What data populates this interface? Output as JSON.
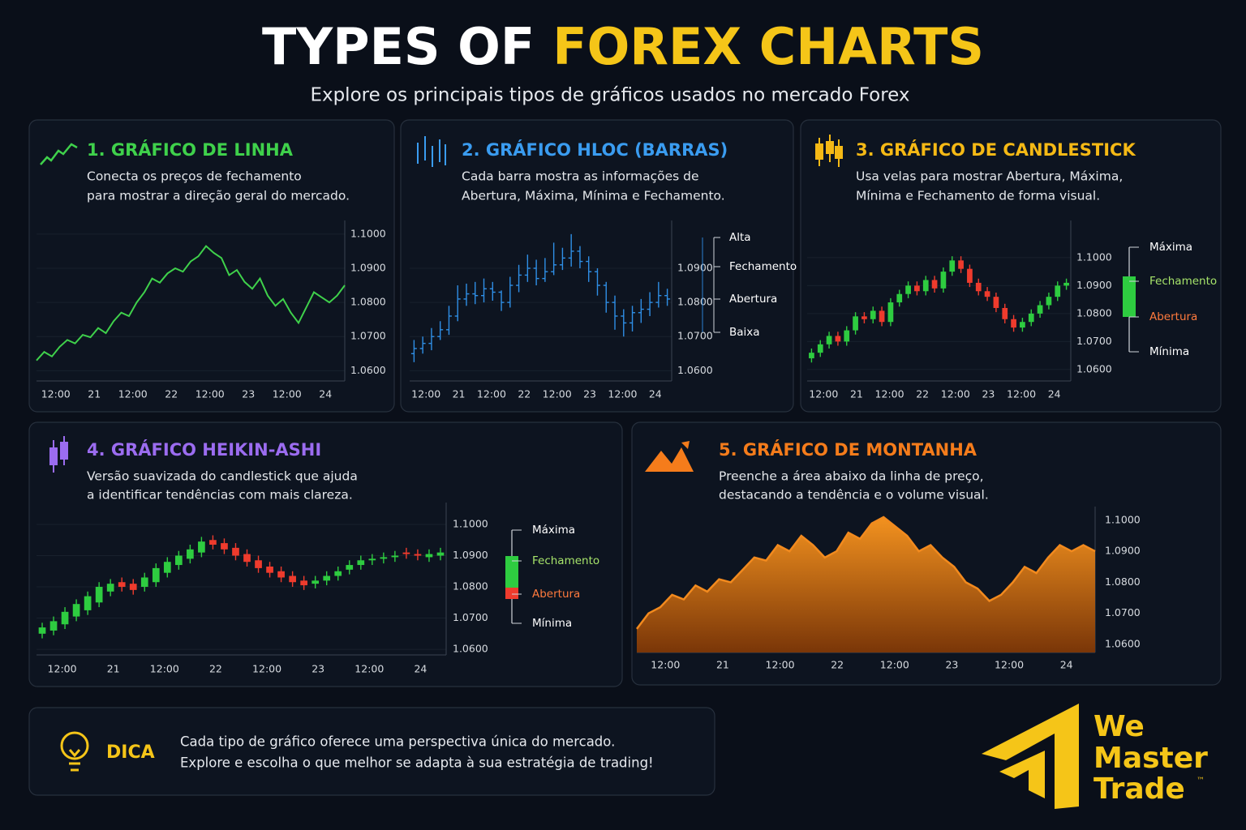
{
  "header": {
    "title_part1": "TYPES OF",
    "title_part2": "FOREX CHARTS",
    "subtitle": "Explore os principais tipos de gráficos usados no mercado Forex"
  },
  "chart_data": [
    {
      "type": "line",
      "title": "1. GRÁFICO DE LINHA",
      "title_color": "#3fd14b",
      "description": [
        "Conecta os preços de fechamento",
        "para mostrar a direção geral do mercado."
      ],
      "color": "#3fd14b",
      "grid": true,
      "values": [
        1.063,
        1.0655,
        1.0642,
        1.067,
        1.069,
        1.068,
        1.0705,
        1.0698,
        1.0725,
        1.071,
        1.0745,
        1.077,
        1.076,
        1.08,
        1.083,
        1.087,
        1.0858,
        1.0885,
        1.09,
        1.089,
        1.092,
        1.0935,
        1.0965,
        1.0945,
        1.093,
        1.088,
        1.0895,
        1.086,
        1.084,
        1.087,
        1.082,
        1.079,
        1.081,
        1.077,
        1.074,
        1.0785,
        1.083,
        1.0815,
        1.08,
        1.082,
        1.085
      ],
      "ylim": [
        1.057,
        1.104
      ],
      "yticks": [
        {
          "value": 1.06,
          "label": "1.0600"
        },
        {
          "value": 1.07,
          "label": "1.0700"
        },
        {
          "value": 1.08,
          "label": "1.0800"
        },
        {
          "value": 1.09,
          "label": "1.0900"
        },
        {
          "value": 1.1,
          "label": "1.1000"
        }
      ],
      "xticks": [
        "12:00",
        "21",
        "12:00",
        "22",
        "12:00",
        "23",
        "12:00",
        "24"
      ]
    },
    {
      "type": "ohlc",
      "title": "2. GRÁFICO HLOC (BARRAS)",
      "title_color": "#3a9cf0",
      "description": [
        "Cada barra mostra as informações de",
        "Abertura, Máxima, Mínima e Fechamento."
      ],
      "color": "#2f8fe6",
      "grid": true,
      "open": [
        1.065,
        1.0665,
        1.068,
        1.07,
        1.072,
        1.076,
        1.081,
        1.0825,
        1.082,
        1.084,
        1.083,
        1.08,
        1.085,
        1.088,
        1.09,
        1.087,
        1.089,
        1.091,
        1.093,
        1.095,
        1.092,
        1.089,
        1.085,
        1.08,
        1.076,
        1.074,
        1.077,
        1.078,
        1.08,
        1.082
      ],
      "high": [
        1.069,
        1.07,
        1.0725,
        1.0745,
        1.079,
        1.085,
        1.0855,
        1.086,
        1.087,
        1.086,
        1.0835,
        1.0875,
        1.091,
        1.094,
        1.0925,
        1.093,
        1.0975,
        1.096,
        1.1,
        1.0965,
        1.0935,
        1.09,
        1.086,
        1.082,
        1.078,
        1.079,
        1.081,
        1.083,
        1.086,
        1.084
      ],
      "low": [
        1.0625,
        1.065,
        1.066,
        1.069,
        1.0705,
        1.0745,
        1.079,
        1.0795,
        1.08,
        1.0805,
        1.0775,
        1.0785,
        1.083,
        1.086,
        1.085,
        1.086,
        1.088,
        1.0895,
        1.0905,
        1.09,
        1.086,
        1.082,
        1.077,
        1.072,
        1.07,
        1.0715,
        1.074,
        1.076,
        1.0785,
        1.079
      ],
      "close": [
        1.0665,
        1.068,
        1.07,
        1.072,
        1.076,
        1.081,
        1.0825,
        1.082,
        1.084,
        1.083,
        1.08,
        1.085,
        1.088,
        1.09,
        1.087,
        1.089,
        1.091,
        1.093,
        1.095,
        1.092,
        1.089,
        1.085,
        1.08,
        1.076,
        1.074,
        1.077,
        1.078,
        1.08,
        1.082,
        1.081
      ],
      "ylim": [
        1.057,
        1.104
      ],
      "yticks": [
        {
          "value": 1.06,
          "label": "1.0600"
        },
        {
          "value": 1.07,
          "label": "1.0700"
        },
        {
          "value": 1.08,
          "label": "1.0800"
        },
        {
          "value": 1.09,
          "label": "1.0900"
        }
      ],
      "xticks": [
        "12:00",
        "21",
        "12:00",
        "22",
        "12:00",
        "23",
        "12:00",
        "24"
      ],
      "legend_labels": [
        "Alta",
        "Fechamento",
        "Abertura",
        "Baixa"
      ]
    },
    {
      "type": "candlestick",
      "title": "3. GRÁFICO DE CANDLESTICK",
      "title_color": "#f5b915",
      "description": [
        "Usa velas para mostrar Abertura, Máxima,",
        "Mínima e Fechamento de forma visual."
      ],
      "up_color": "#2ecc40",
      "down_color": "#ef3b2d",
      "grid": true,
      "open": [
        1.064,
        1.066,
        1.069,
        1.072,
        1.07,
        1.074,
        1.079,
        1.078,
        1.081,
        1.077,
        1.084,
        1.087,
        1.09,
        1.088,
        1.092,
        1.089,
        1.095,
        1.099,
        1.096,
        1.091,
        1.088,
        1.086,
        1.082,
        1.078,
        1.075,
        1.077,
        1.08,
        1.083,
        1.086,
        1.09
      ],
      "high": [
        1.0675,
        1.0705,
        1.0735,
        1.0735,
        1.0755,
        1.0805,
        1.0805,
        1.0825,
        1.0825,
        1.0855,
        1.0885,
        1.0915,
        1.0915,
        1.0935,
        1.0935,
        1.0965,
        1.1005,
        1.1005,
        1.0975,
        1.0925,
        1.0895,
        1.0875,
        1.0835,
        1.0795,
        1.0785,
        1.0815,
        1.0845,
        1.0875,
        1.0915,
        1.0925
      ],
      "low": [
        1.0625,
        1.0645,
        1.0675,
        1.0685,
        1.0685,
        1.0725,
        1.0765,
        1.0765,
        1.0755,
        1.0755,
        1.0825,
        1.0855,
        1.0865,
        1.0865,
        1.0875,
        1.0875,
        1.0935,
        1.0945,
        1.0895,
        1.0865,
        1.0845,
        1.0805,
        1.0765,
        1.0735,
        1.0735,
        1.0755,
        1.0785,
        1.0815,
        1.0845,
        1.0885
      ],
      "close": [
        1.066,
        1.069,
        1.072,
        1.07,
        1.074,
        1.079,
        1.078,
        1.081,
        1.077,
        1.084,
        1.087,
        1.09,
        1.088,
        1.092,
        1.089,
        1.095,
        1.099,
        1.096,
        1.091,
        1.088,
        1.086,
        1.082,
        1.078,
        1.075,
        1.077,
        1.08,
        1.083,
        1.086,
        1.09,
        1.091
      ],
      "ylim": [
        1.0559,
        1.1133
      ],
      "yticks": [
        {
          "value": 1.06,
          "label": "1.0600"
        },
        {
          "value": 1.07,
          "label": "1.0700"
        },
        {
          "value": 1.08,
          "label": "1.0800"
        },
        {
          "value": 1.09,
          "label": "1.0900"
        },
        {
          "value": 1.1,
          "label": "1.1000"
        }
      ],
      "xticks": [
        "12:00",
        "21",
        "12:00",
        "22",
        "12:00",
        "23",
        "12:00",
        "24"
      ],
      "legend_labels": [
        "Máxima",
        "Fechamento",
        "Abertura",
        "Mínima"
      ]
    },
    {
      "type": "heikin-ashi",
      "title": "4. GRÁFICO HEIKIN-ASHI",
      "title_color": "#9b6cf0",
      "description": [
        "Versão suavizada do candlestick que ajuda",
        "a identificar tendências com mais clareza."
      ],
      "up_color": "#2ecc40",
      "down_color": "#ef3b2d",
      "grid": true,
      "open": [
        1.065,
        1.066,
        1.068,
        1.0705,
        1.0725,
        1.075,
        1.0785,
        1.0815,
        1.081,
        1.08,
        1.0815,
        1.0845,
        1.087,
        1.089,
        1.091,
        1.095,
        1.094,
        1.0925,
        1.0905,
        1.0885,
        1.0865,
        1.085,
        1.0835,
        1.082,
        1.081,
        1.082,
        1.0835,
        1.0855,
        1.087,
        1.0885,
        1.089,
        1.0895,
        1.091,
        1.0905,
        1.0895,
        1.09
      ],
      "high": [
        1.0685,
        1.0705,
        1.0735,
        1.076,
        1.0785,
        1.0815,
        1.0825,
        1.083,
        1.0825,
        1.0845,
        1.0875,
        1.0895,
        1.0915,
        1.0935,
        1.096,
        1.0965,
        1.0955,
        1.094,
        1.092,
        1.09,
        1.088,
        1.0865,
        1.085,
        1.0835,
        1.0835,
        1.085,
        1.0865,
        1.0885,
        1.09,
        1.0905,
        1.091,
        1.0915,
        1.0925,
        1.092,
        1.092,
        1.0925
      ],
      "low": [
        1.0635,
        1.0645,
        1.0665,
        1.069,
        1.071,
        1.0735,
        1.077,
        1.0785,
        1.0775,
        1.0785,
        1.08,
        1.083,
        1.0855,
        1.0875,
        1.0895,
        1.092,
        1.0905,
        1.0885,
        1.0865,
        1.0845,
        1.083,
        1.0815,
        1.08,
        1.079,
        1.0795,
        1.0805,
        1.082,
        1.084,
        1.0855,
        1.087,
        1.0875,
        1.088,
        1.089,
        1.0885,
        1.088,
        1.0885
      ],
      "close": [
        1.067,
        1.069,
        1.072,
        1.0745,
        1.077,
        1.08,
        1.081,
        1.08,
        1.079,
        1.083,
        1.086,
        1.088,
        1.09,
        1.092,
        1.0945,
        1.0935,
        1.092,
        1.09,
        1.088,
        1.086,
        1.0845,
        1.083,
        1.0815,
        1.0805,
        1.082,
        1.0835,
        1.085,
        1.087,
        1.0885,
        1.089,
        1.0895,
        1.09,
        1.0905,
        1.09,
        1.0905,
        1.091
      ],
      "ylim": [
        1.0582,
        1.107
      ],
      "yticks": [
        {
          "value": 1.06,
          "label": "1.0600"
        },
        {
          "value": 1.07,
          "label": "1.0700"
        },
        {
          "value": 1.08,
          "label": "1.0800"
        },
        {
          "value": 1.09,
          "label": "1.0900"
        },
        {
          "value": 1.1,
          "label": "1.1000"
        }
      ],
      "xticks": [
        "12:00",
        "21",
        "12:00",
        "22",
        "12:00",
        "23",
        "12:00",
        "24"
      ],
      "legend_labels": [
        "Máxima",
        "Fechamento",
        "Abertura",
        "Mínima"
      ]
    },
    {
      "type": "area",
      "title": "5. GRÁFICO DE MONTANHA",
      "title_color": "#f57c1b",
      "description": [
        "Preenche a área abaixo da linha de preço,",
        "destacando a tendência e o volume visual."
      ],
      "color": "#f28a1e",
      "grid": false,
      "values": [
        1.065,
        1.07,
        1.072,
        1.076,
        1.0745,
        1.079,
        1.077,
        1.081,
        1.08,
        1.084,
        1.088,
        1.087,
        1.092,
        1.09,
        1.095,
        1.092,
        1.088,
        1.09,
        1.096,
        1.094,
        1.099,
        1.101,
        1.098,
        1.095,
        1.09,
        1.092,
        1.088,
        1.085,
        1.08,
        1.078,
        1.074,
        1.076,
        1.08,
        1.085,
        1.083,
        1.088,
        1.092,
        1.09,
        1.092,
        1.09
      ],
      "ylim": [
        1.0574,
        1.1044
      ],
      "yticks": [
        {
          "value": 1.06,
          "label": "1.0600"
        },
        {
          "value": 1.07,
          "label": "1.0700"
        },
        {
          "value": 1.08,
          "label": "1.0800"
        },
        {
          "value": 1.09,
          "label": "1.0900"
        },
        {
          "value": 1.1,
          "label": "1.1000"
        }
      ],
      "xticks": [
        "12:00",
        "21",
        "12:00",
        "22",
        "12:00",
        "23",
        "12:00",
        "24"
      ]
    }
  ],
  "tip": {
    "label": "DICA",
    "text": [
      "Cada tipo de gráfico oferece uma perspectiva única do mercado.",
      "Explore e escolha o que melhor se adapta à sua estratégia de trading!"
    ]
  },
  "logo": {
    "lines": [
      "We",
      "Master",
      "Trade"
    ],
    "mark": "™"
  }
}
